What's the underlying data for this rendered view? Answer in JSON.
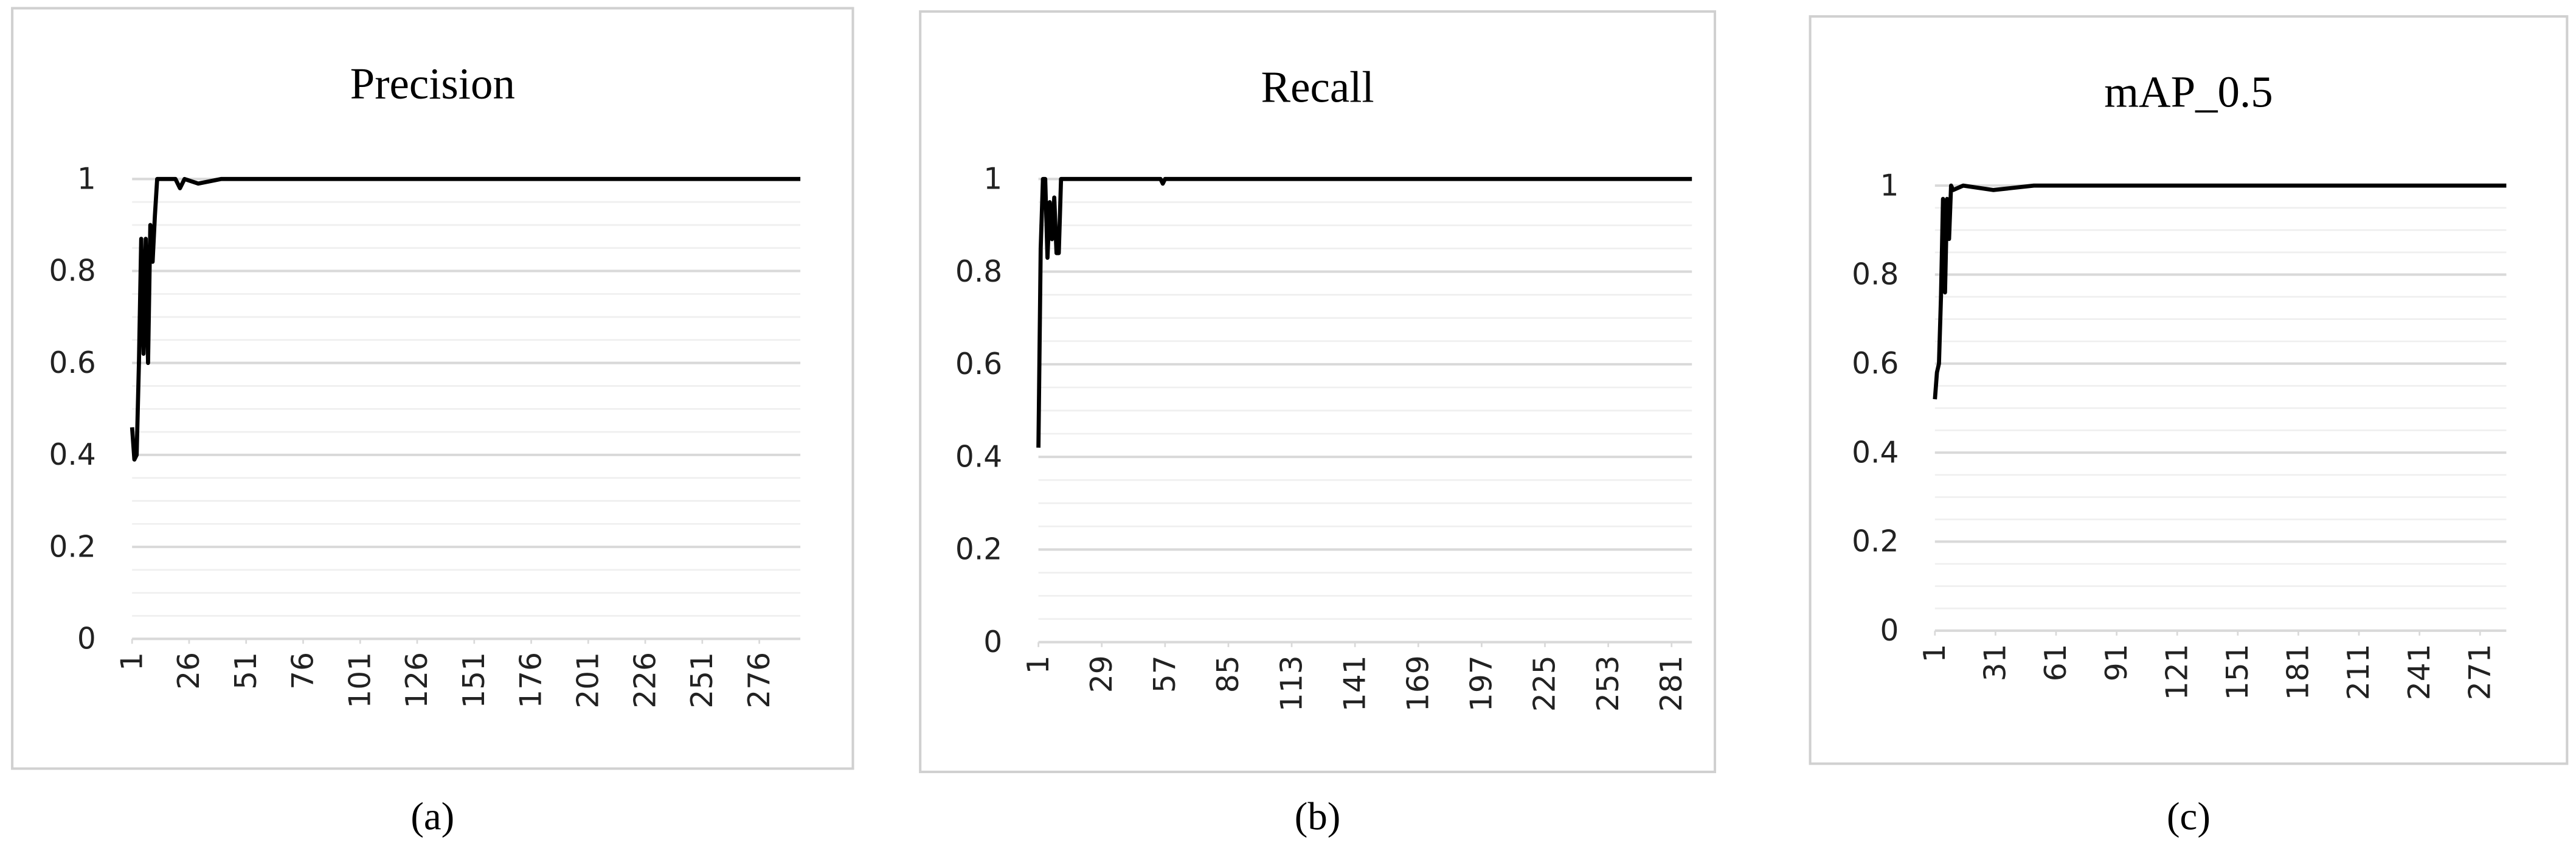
{
  "chart_data": [
    {
      "type": "line",
      "title": "Precision",
      "caption": "(a)",
      "color": "#000000",
      "x": [
        1,
        2,
        3,
        4,
        5,
        6,
        7,
        8,
        9,
        10,
        11,
        12,
        13,
        20,
        22,
        24,
        30,
        40,
        60,
        100,
        150,
        200,
        250,
        294
      ],
      "values": [
        0.46,
        0.39,
        0.4,
        0.6,
        0.87,
        0.62,
        0.87,
        0.6,
        0.9,
        0.82,
        0.92,
        1,
        1,
        1,
        0.98,
        1,
        0.99,
        1,
        1,
        1,
        1,
        1,
        1,
        1
      ],
      "xlim": [
        1,
        294
      ],
      "xticks": [
        1,
        26,
        51,
        76,
        101,
        126,
        151,
        176,
        201,
        226,
        251,
        276
      ],
      "ylim": [
        0,
        1
      ],
      "yticks": [
        0,
        0.2,
        0.4,
        0.6,
        0.8,
        1
      ],
      "grid": true,
      "minor_grid_step": 0.05
    },
    {
      "type": "line",
      "title": "Recall",
      "caption": "(b)",
      "color": "#000000",
      "x": [
        1,
        2,
        3,
        4,
        5,
        6,
        7,
        8,
        9,
        10,
        11,
        55,
        56,
        57,
        100,
        200,
        290
      ],
      "values": [
        0.42,
        0.85,
        1,
        1,
        0.83,
        0.95,
        0.87,
        0.96,
        0.84,
        0.84,
        1,
        1,
        0.99,
        1,
        1,
        1,
        1
      ],
      "xlim": [
        1,
        290
      ],
      "xticks": [
        1,
        29,
        57,
        85,
        113,
        141,
        169,
        197,
        225,
        253,
        281
      ],
      "ylim": [
        0,
        1
      ],
      "yticks": [
        0,
        0.2,
        0.4,
        0.6,
        0.8,
        1
      ],
      "grid": true,
      "minor_grid_step": 0.05
    },
    {
      "type": "line",
      "title": "mAP_0.5",
      "caption": "(c)",
      "color": "#000000",
      "x": [
        1,
        2,
        3,
        4,
        5,
        6,
        7,
        8,
        9,
        10,
        15,
        30,
        50,
        100,
        200,
        284
      ],
      "values": [
        0.52,
        0.58,
        0.6,
        0.75,
        0.97,
        0.76,
        0.97,
        0.88,
        1,
        0.99,
        1,
        0.99,
        1,
        1,
        1,
        1
      ],
      "xlim": [
        1,
        284
      ],
      "xticks": [
        1,
        31,
        61,
        91,
        121,
        151,
        181,
        211,
        241,
        271
      ],
      "ylim": [
        0,
        1
      ],
      "yticks": [
        0,
        0.2,
        0.4,
        0.6,
        0.8,
        1
      ],
      "grid": true,
      "minor_grid_step": 0.05
    }
  ]
}
